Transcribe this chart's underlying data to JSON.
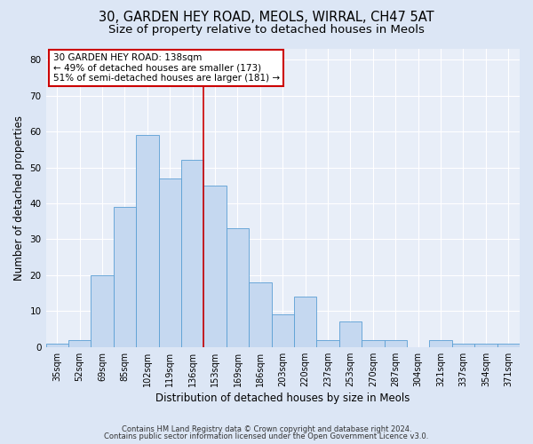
{
  "title_line1": "30, GARDEN HEY ROAD, MEOLS, WIRRAL, CH47 5AT",
  "title_line2": "Size of property relative to detached houses in Meols",
  "xlabel": "Distribution of detached houses by size in Meols",
  "ylabel": "Number of detached properties",
  "categories": [
    "35sqm",
    "52sqm",
    "69sqm",
    "85sqm",
    "102sqm",
    "119sqm",
    "136sqm",
    "153sqm",
    "169sqm",
    "186sqm",
    "203sqm",
    "220sqm",
    "237sqm",
    "253sqm",
    "270sqm",
    "287sqm",
    "304sqm",
    "321sqm",
    "337sqm",
    "354sqm",
    "371sqm"
  ],
  "values": [
    1,
    2,
    20,
    39,
    59,
    47,
    52,
    45,
    33,
    18,
    9,
    14,
    2,
    7,
    2,
    2,
    0,
    2,
    1,
    1,
    1
  ],
  "bar_color": "#c5d8f0",
  "bar_edge_color": "#5a9fd4",
  "vline_x_index": 6,
  "annotation_line1": "30 GARDEN HEY ROAD: 138sqm",
  "annotation_line2": "← 49% of detached houses are smaller (173)",
  "annotation_line3": "51% of semi-detached houses are larger (181) →",
  "annotation_box_color": "#ffffff",
  "annotation_box_edge_color": "#cc0000",
  "vline_color": "#cc0000",
  "ylim": [
    0,
    83
  ],
  "yticks": [
    0,
    10,
    20,
    30,
    40,
    50,
    60,
    70,
    80
  ],
  "fig_bg_color": "#dce6f5",
  "axes_bg_color": "#e8eef8",
  "grid_color": "#ffffff",
  "footer_line1": "Contains HM Land Registry data © Crown copyright and database right 2024.",
  "footer_line2": "Contains public sector information licensed under the Open Government Licence v3.0.",
  "title_fontsize": 10.5,
  "subtitle_fontsize": 9.5,
  "tick_fontsize": 7,
  "label_fontsize": 8.5,
  "annotation_fontsize": 7.5,
  "footer_fontsize": 6
}
